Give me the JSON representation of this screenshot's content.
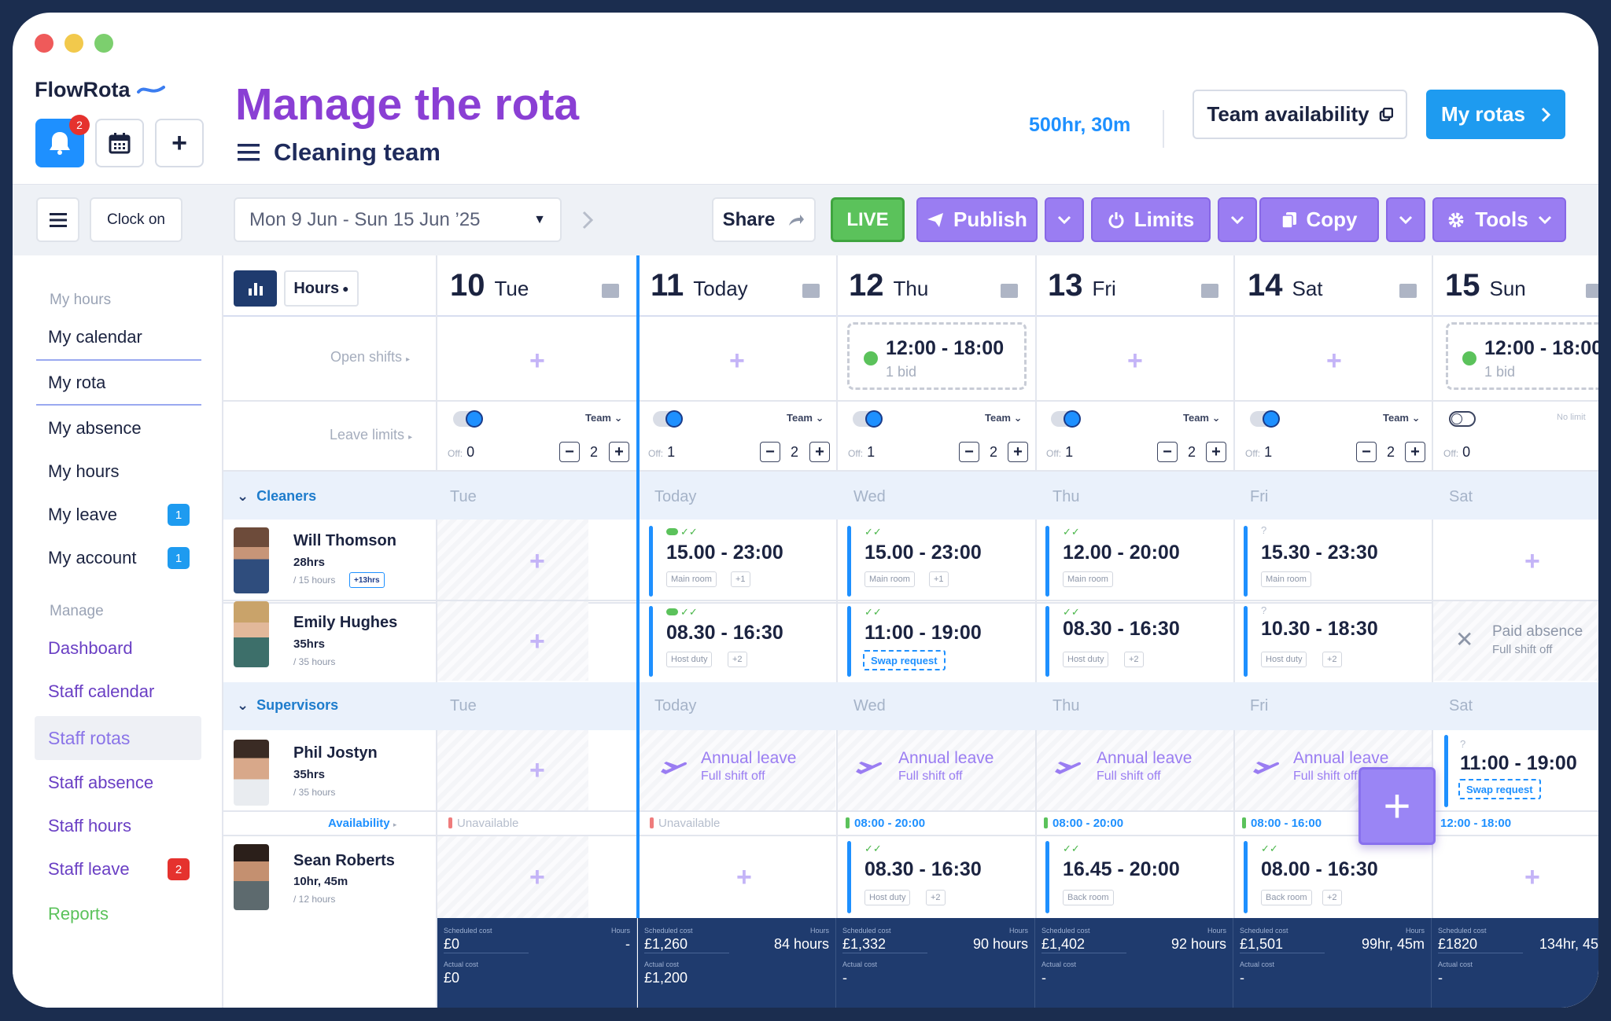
{
  "app": {
    "brand": "FlowRota",
    "notification_count": "2"
  },
  "header": {
    "title": "Manage the rota",
    "team": "Cleaning team",
    "total_hours": "500hr, 30m",
    "team_availability": "Team availability",
    "my_rotas": "My rotas"
  },
  "toolbar": {
    "clock_on": "Clock on",
    "date_range": "Mon 9 Jun - Sun 15 Jun ’25",
    "share": "Share",
    "live": "LIVE",
    "publish": "Publish",
    "limits": "Limits",
    "copy": "Copy",
    "tools": "Tools"
  },
  "sidebar": {
    "section_my": "My hours",
    "my_items": [
      {
        "label": "My calendar",
        "count": ""
      },
      {
        "label": "My rota",
        "count": ""
      },
      {
        "label": "My absence",
        "count": ""
      },
      {
        "label": "My hours",
        "count": ""
      },
      {
        "label": "My leave",
        "count": "1"
      },
      {
        "label": "My account",
        "count": "1"
      }
    ],
    "section_manage": "Manage",
    "manage_items": [
      {
        "label": "Dashboard",
        "count": ""
      },
      {
        "label": "Staff calendar",
        "count": ""
      },
      {
        "label": "Staff rotas",
        "count": ""
      },
      {
        "label": "Staff absence",
        "count": ""
      },
      {
        "label": "Staff hours",
        "count": ""
      },
      {
        "label": "Staff leave",
        "count": "2"
      },
      {
        "label": "Reports",
        "count": ""
      }
    ]
  },
  "grid": {
    "hours_label": "Hours",
    "open_shifts_label": "Open shifts",
    "leave_limits_label": "Leave limits",
    "availability_label": "Availability",
    "days": [
      {
        "num": "10",
        "name": "Tue"
      },
      {
        "num": "11",
        "name": "Today"
      },
      {
        "num": "12",
        "name": "Thu"
      },
      {
        "num": "13",
        "name": "Fri"
      },
      {
        "num": "14",
        "name": "Sat"
      },
      {
        "num": "15",
        "name": "Sun"
      }
    ],
    "open_shifts": [
      {
        "day": 2,
        "time": "12:00 - 18:00",
        "bids": "1 bid"
      },
      {
        "day": 5,
        "time": "12:00 - 18:00",
        "bids": "1 bid"
      }
    ],
    "limits": [
      {
        "mode": "Team",
        "off": "Off:",
        "offval": "0",
        "max": "2"
      },
      {
        "mode": "Team",
        "off": "Off:",
        "offval": "1",
        "max": "2"
      },
      {
        "mode": "Team",
        "off": "Off:",
        "offval": "1",
        "max": "2"
      },
      {
        "mode": "Team",
        "off": "Off:",
        "offval": "1",
        "max": "2"
      },
      {
        "mode": "Team",
        "off": "Off:",
        "offval": "1",
        "max": "2"
      },
      {
        "mode": "No limit",
        "off": "Off:",
        "offval": "0",
        "max": ""
      }
    ],
    "group_days": [
      "Tue",
      "Today",
      "Wed",
      "Thu",
      "Fri",
      "Sat"
    ],
    "groups": [
      "Cleaners",
      "Supervisors"
    ],
    "people": [
      {
        "name": "Will Thomson",
        "hours": "28hrs",
        "meta": "/ 15 hours",
        "extra": "+13hrs"
      },
      {
        "name": "Emily Hughes",
        "hours": "35hrs",
        "meta": "/ 35 hours",
        "extra": ""
      },
      {
        "name": "Phil Jostyn",
        "hours": "35hrs",
        "meta": "/ 35 hours",
        "extra": ""
      },
      {
        "name": "Sean Roberts",
        "hours": "10hr, 45m",
        "meta": "/ 12 hours",
        "extra": ""
      }
    ],
    "will_shifts": [
      {
        "time": "15.00 - 23:00",
        "room": "Main room",
        "plus": "+1"
      },
      {
        "time": "15.00 - 23:00",
        "room": "Main room",
        "plus": "+1"
      },
      {
        "time": "12.00 - 20:00",
        "room": "Main room",
        "plus": ""
      },
      {
        "time": "15.30 - 23:30",
        "room": "Main room",
        "plus": ""
      }
    ],
    "emily_shifts": [
      {
        "time": "08.30 - 16:30",
        "room": "Host duty",
        "plus": "+2"
      },
      {
        "time": "11:00 - 19:00",
        "swap": "Swap request"
      },
      {
        "time": "08.30 - 16:30",
        "room": "Host duty",
        "plus": "+2"
      },
      {
        "time": "10.30 - 18:30",
        "room": "Host duty",
        "plus": "+2"
      }
    ],
    "paid_absence": {
      "title": "Paid absence",
      "sub": "Full shift off"
    },
    "annual_leave": {
      "title": "Annual leave",
      "sub": "Full shift off"
    },
    "phil_sun": {
      "time": "11:00 - 19:00",
      "swap": "Swap request"
    },
    "availability": [
      "Unavailable",
      "Unavailable",
      "08:00 - 20:00",
      "08:00 - 20:00",
      "08:00 - 16:00",
      "12:00 - 18:00"
    ],
    "sean_shifts": [
      {
        "time": "08.30 - 16:30",
        "room": "Host duty",
        "plus": "+2"
      },
      {
        "time": "16.45 - 20:00",
        "room": "Back room",
        "plus": ""
      },
      {
        "time": "08.00 - 16:30",
        "room": "Back room",
        "plus": "+2"
      }
    ],
    "footer_labels": {
      "sched": "Scheduled cost",
      "hours": "Hours",
      "actual": "Actual cost"
    },
    "footer": [
      {
        "sched": "£0",
        "hours": "-",
        "actual": "£0"
      },
      {
        "sched": "£1,260",
        "hours": "84 hours",
        "actual": "£1,200"
      },
      {
        "sched": "£1,332",
        "hours": "90 hours",
        "actual": "-"
      },
      {
        "sched": "£1,402",
        "hours": "92 hours",
        "actual": "-"
      },
      {
        "sched": "£1,501",
        "hours": "99hr, 45m",
        "actual": "-"
      },
      {
        "sched": "£1820",
        "hours": "134hr, 45",
        "actual": "-"
      }
    ]
  },
  "colors": {
    "accent": "#1e90ff",
    "purple": "#9a7df2",
    "title": "#8a3fd4",
    "footer": "#1f3b6e",
    "live": "#5bc25b"
  }
}
